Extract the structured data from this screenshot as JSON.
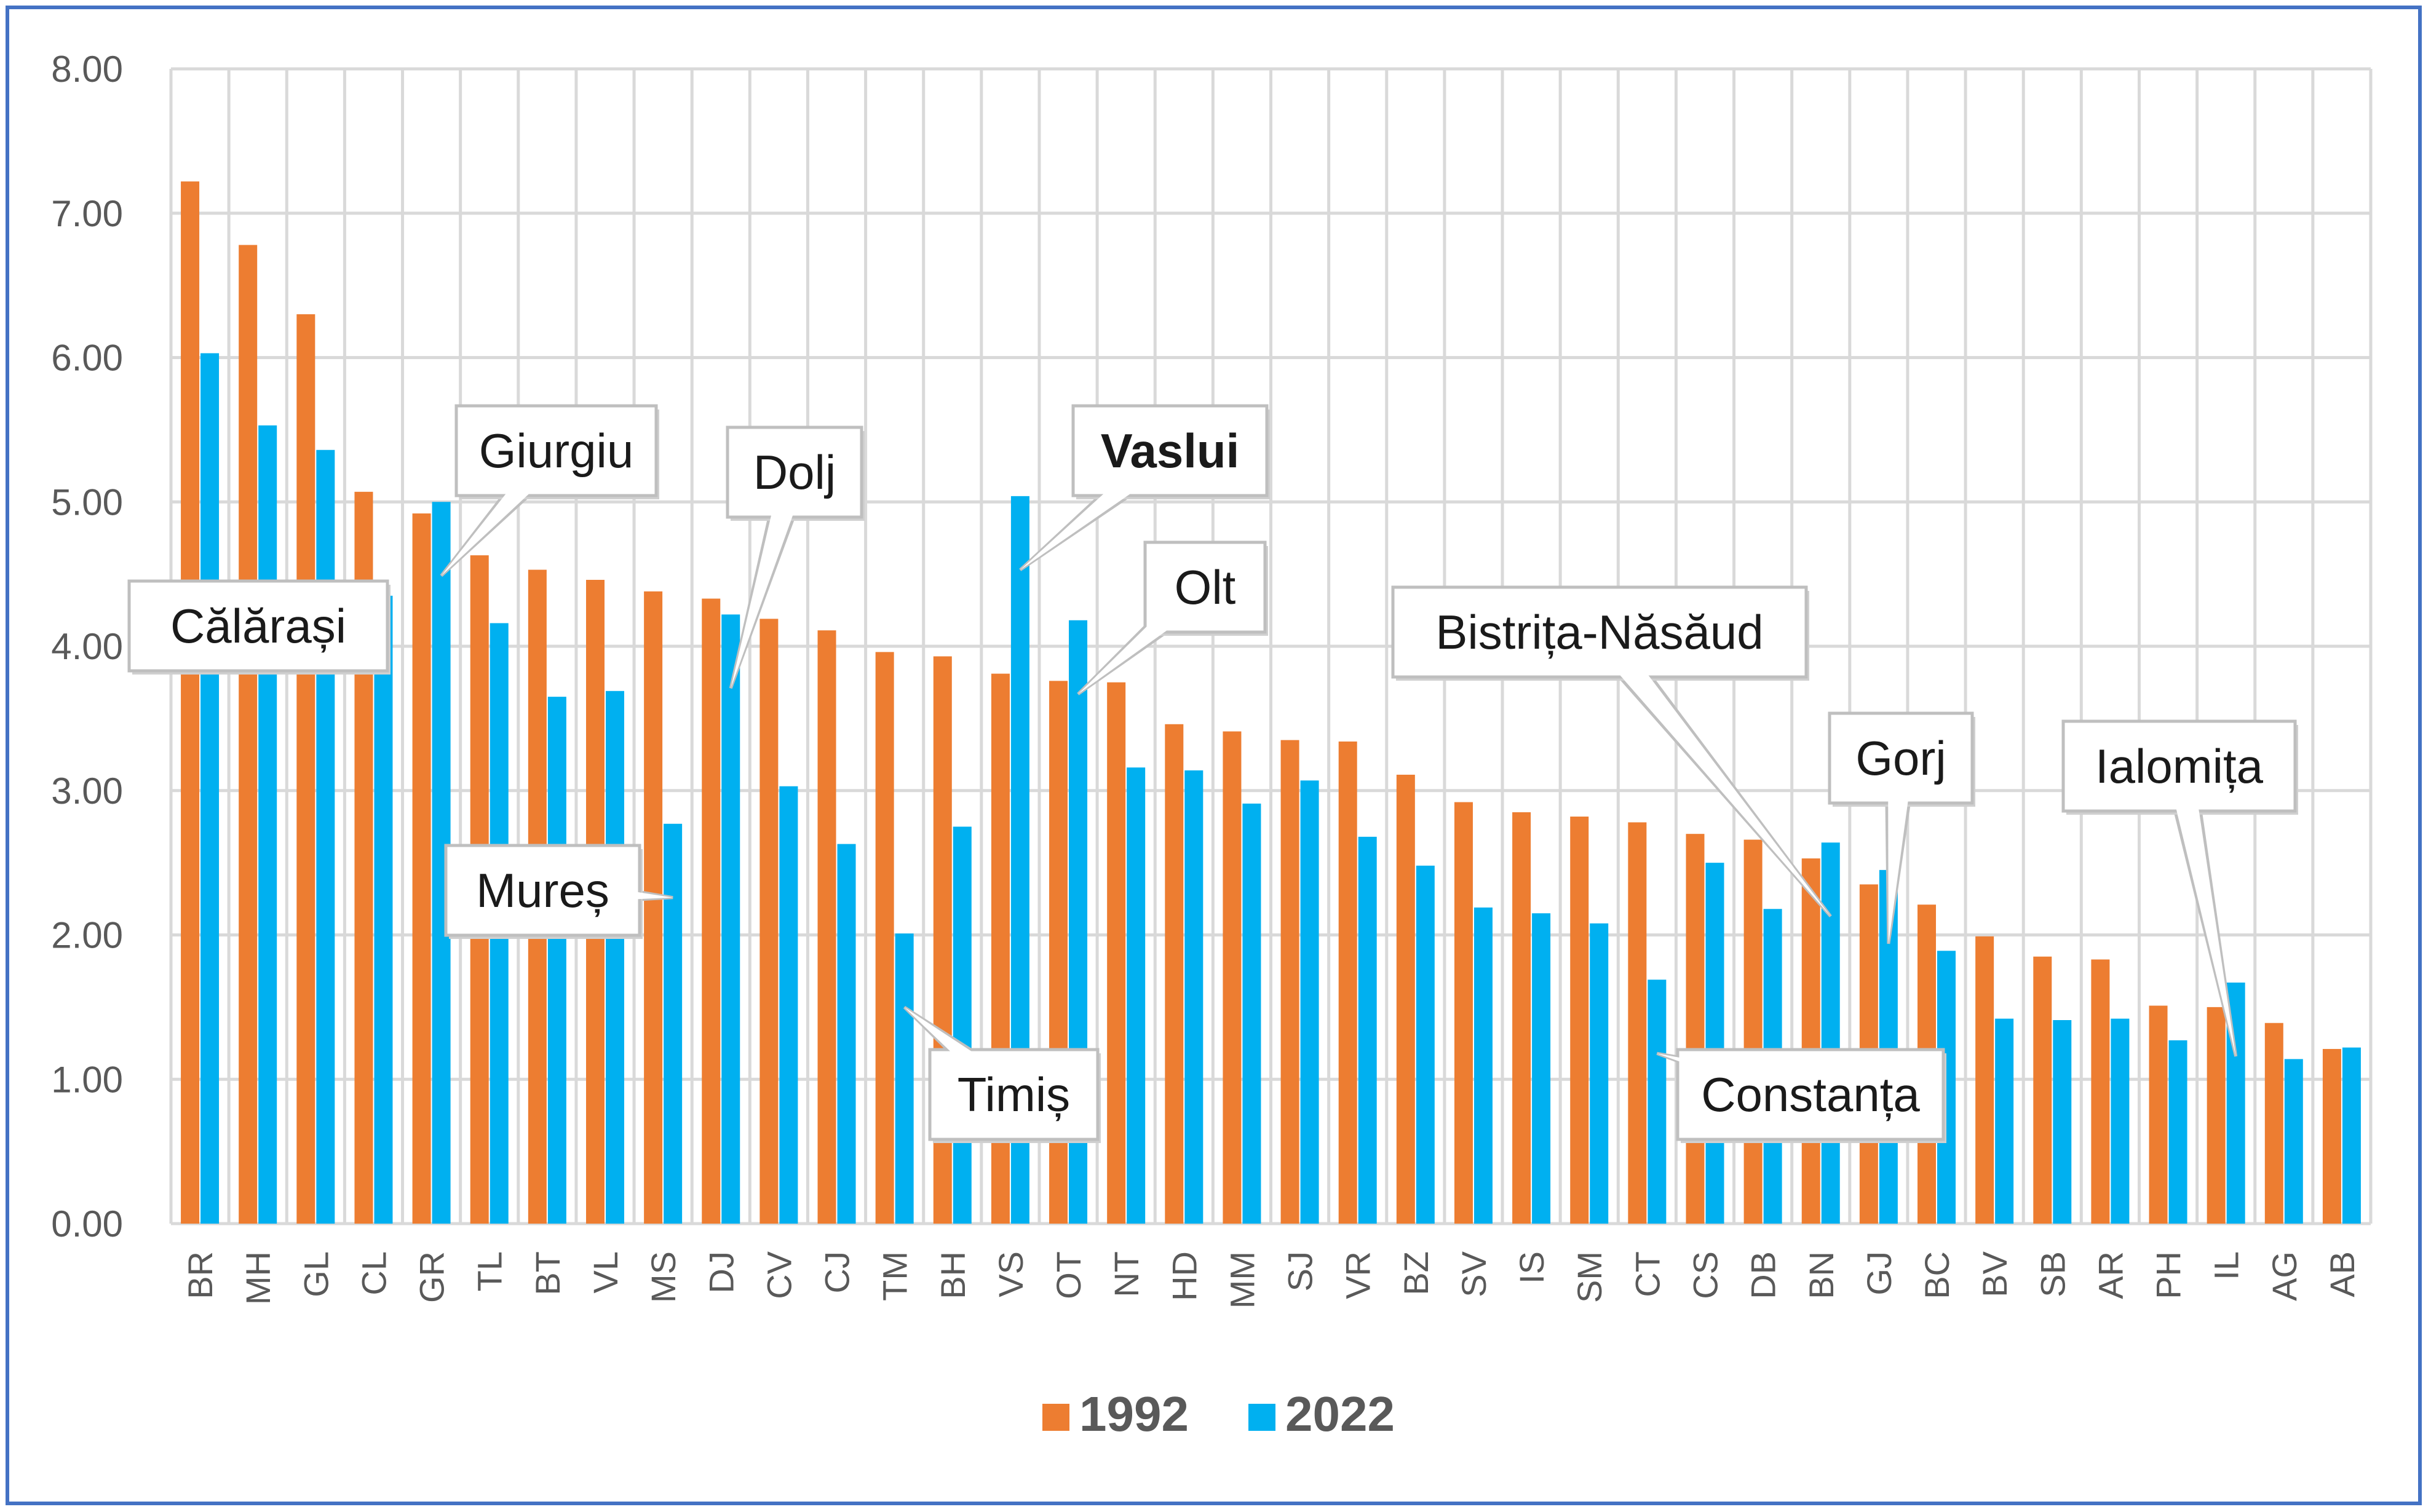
{
  "chart_data": {
    "type": "bar",
    "title": "",
    "xlabel": "",
    "ylabel": "",
    "ylim": [
      0,
      8
    ],
    "yticks": [
      "0.00",
      "1.00",
      "2.00",
      "3.00",
      "4.00",
      "5.00",
      "6.00",
      "7.00",
      "8.00"
    ],
    "grid": true,
    "legend_position": "bottom-center",
    "categories": [
      "BR",
      "MH",
      "GL",
      "CL",
      "GR",
      "TL",
      "BT",
      "VL",
      "MS",
      "DJ",
      "CV",
      "CJ",
      "TM",
      "BH",
      "VS",
      "OT",
      "NT",
      "HD",
      "MM",
      "SJ",
      "VR",
      "BZ",
      "SV",
      "IS",
      "SM",
      "CT",
      "CS",
      "DB",
      "BN",
      "GJ",
      "BC",
      "BV",
      "SB",
      "AR",
      "PH",
      "IL",
      "AG",
      "AB"
    ],
    "series": [
      {
        "name": "1992",
        "color": "#ed7d31",
        "values": [
          7.22,
          6.78,
          6.3,
          5.07,
          4.92,
          4.63,
          4.53,
          4.46,
          4.38,
          4.33,
          4.19,
          4.11,
          3.96,
          3.93,
          3.81,
          3.76,
          3.75,
          3.46,
          3.41,
          3.35,
          3.34,
          3.11,
          2.92,
          2.85,
          2.82,
          2.78,
          2.7,
          2.66,
          2.53,
          2.35,
          2.21,
          1.99,
          1.85,
          1.83,
          1.51,
          1.5,
          1.39,
          1.21
        ]
      },
      {
        "name": "2022",
        "color": "#00b0f0",
        "values": [
          6.03,
          5.53,
          5.36,
          4.35,
          5.0,
          4.16,
          3.65,
          3.69,
          2.77,
          4.22,
          3.03,
          2.63,
          2.01,
          2.75,
          5.04,
          4.18,
          3.16,
          3.14,
          2.91,
          3.07,
          2.68,
          2.48,
          2.19,
          2.15,
          2.08,
          1.69,
          2.5,
          2.18,
          2.64,
          2.45,
          1.89,
          1.42,
          1.41,
          1.42,
          1.27,
          1.67,
          1.14,
          1.22
        ]
      }
    ],
    "annotations": [
      {
        "label": "Călărași",
        "category": "CL",
        "series": "2022",
        "bold": false
      },
      {
        "label": "Giurgiu",
        "category": "GR",
        "series": "2022",
        "bold": false
      },
      {
        "label": "Mureș",
        "category": "MS",
        "series": "2022",
        "bold": false
      },
      {
        "label": "Dolj",
        "category": "DJ",
        "series": "2022",
        "bold": false
      },
      {
        "label": "Timiș",
        "category": "TM",
        "series": "2022",
        "bold": false
      },
      {
        "label": "Vaslui",
        "category": "VS",
        "series": "2022",
        "bold": true
      },
      {
        "label": "Olt",
        "category": "OT",
        "series": "2022",
        "bold": false
      },
      {
        "label": "Constanța",
        "category": "CT",
        "series": "2022",
        "bold": false
      },
      {
        "label": "Bistrița-Năsăud",
        "category": "BN",
        "series": "2022",
        "bold": false
      },
      {
        "label": "Gorj",
        "category": "GJ",
        "series": "2022",
        "bold": false
      },
      {
        "label": "Ialomița",
        "category": "IL",
        "series": "2022",
        "bold": false
      }
    ]
  }
}
